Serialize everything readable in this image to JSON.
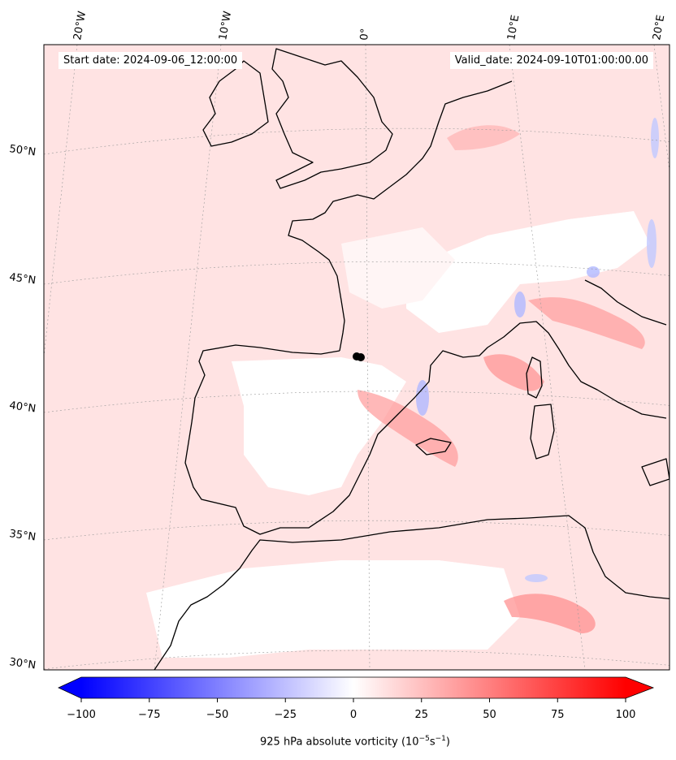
{
  "map": {
    "start_label": "Start date: 2024-09-06_12:00:00",
    "valid_label": "Valid_date: 2024-09-10T01:00:00.00",
    "lon_labels": [
      "20°W",
      "10°W",
      "0°",
      "10°E",
      "20°E"
    ],
    "lat_labels": [
      "50°N",
      "45°N",
      "40°N",
      "35°N",
      "30°N"
    ],
    "colorbar": {
      "min": -100,
      "max": 100,
      "ticks": [
        "−100",
        "−75",
        "−50",
        "−25",
        "0",
        "25",
        "50",
        "75",
        "100"
      ],
      "title": "925 hPa absolute vorticity (10",
      "title_exp1": "−5",
      "title_mid": "s",
      "title_exp2": "−1",
      "title_end": ")",
      "cmap": "bwr",
      "extend": "both"
    },
    "colors": {
      "coast": "#000000",
      "positive": "#ff0000",
      "negative": "#0000ff",
      "background_field": "#ffe6e6"
    }
  }
}
